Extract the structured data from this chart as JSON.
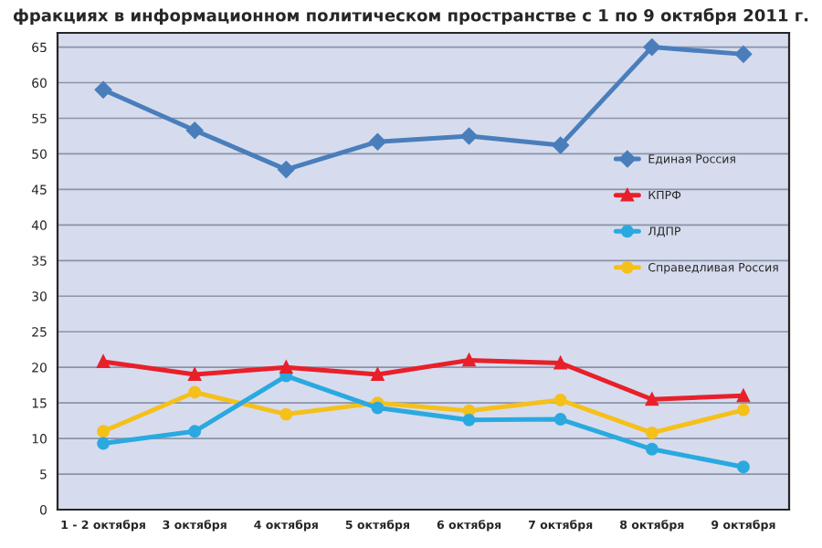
{
  "chart_data": {
    "type": "line",
    "title": "фракциях в информационном политическом пространстве с 1 по 9 октября 2011 г.",
    "categories": [
      "1 - 2 октября",
      "3 октября",
      "4 октября",
      "5 октября",
      "6 октября",
      "7 октября",
      "8 октября",
      "9 октября"
    ],
    "series": [
      {
        "name": "Единая Россия",
        "color": "#4a7ebb",
        "marker": "diamond",
        "values": [
          59,
          53.3,
          47.8,
          51.7,
          52.5,
          51.2,
          65,
          64
        ]
      },
      {
        "name": "КПРФ",
        "color": "#e8202a",
        "marker": "triangle",
        "values": [
          20.8,
          19,
          20,
          19,
          21,
          20.6,
          15.5,
          16
        ]
      },
      {
        "name": "ЛДПР",
        "color": "#2aa9e0",
        "marker": "circle",
        "values": [
          9.3,
          11,
          18.8,
          14.3,
          12.6,
          12.7,
          8.5,
          6
        ]
      },
      {
        "name": "Справедливая Россия",
        "color": "#f5c01a",
        "marker": "circle",
        "values": [
          11,
          16.5,
          13.4,
          15,
          13.9,
          15.4,
          10.8,
          14
        ]
      }
    ],
    "ylim": [
      0,
      67
    ],
    "yticks": [
      0,
      5,
      10,
      15,
      20,
      25,
      30,
      35,
      40,
      45,
      50,
      55,
      60,
      65
    ],
    "grid": "y",
    "legend": "right",
    "line_style": "solid"
  }
}
